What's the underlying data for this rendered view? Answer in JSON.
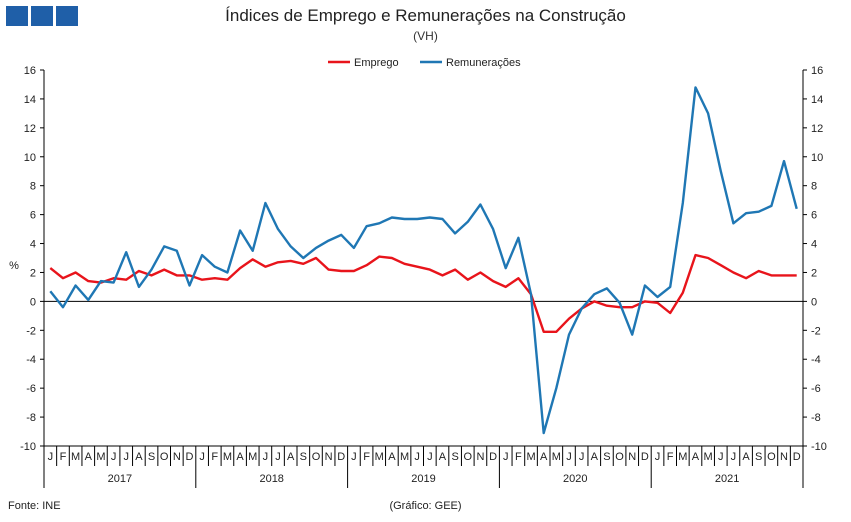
{
  "header": {
    "title": "Índices de Emprego e Remunerações na Construção",
    "subtitle": "(VH)"
  },
  "footer": {
    "source": "Fonte: INE",
    "credit": "(Gráfico: GEE)"
  },
  "colors": {
    "logo": "#1f5fa8",
    "emprego": "#e8141b",
    "remuneracoes": "#1f77b4"
  },
  "chart_data": {
    "type": "line",
    "title": "Índices de Emprego e Remunerações na Construção",
    "subtitle": "(VH)",
    "ylabel": "%",
    "ylim": [
      -10,
      16
    ],
    "yticks": [
      -10,
      -8,
      -6,
      -4,
      -2,
      0,
      2,
      4,
      6,
      8,
      10,
      12,
      14,
      16
    ],
    "grid": false,
    "legend": "top-center",
    "month_labels": [
      "J",
      "F",
      "M",
      "A",
      "M",
      "J",
      "J",
      "A",
      "S",
      "O",
      "N",
      "D"
    ],
    "years": [
      "2017",
      "2018",
      "2019",
      "2020",
      "2021"
    ],
    "series": [
      {
        "name": "Emprego",
        "color": "#e8141b",
        "values": [
          2.3,
          1.6,
          2.0,
          1.4,
          1.3,
          1.6,
          1.5,
          2.1,
          1.8,
          2.2,
          1.8,
          1.8,
          1.5,
          1.6,
          1.5,
          2.3,
          2.9,
          2.4,
          2.7,
          2.8,
          2.6,
          3.0,
          2.2,
          2.1,
          2.1,
          2.5,
          3.1,
          3.0,
          2.6,
          2.4,
          2.2,
          1.8,
          2.2,
          1.5,
          2.0,
          1.4,
          1.0,
          1.6,
          0.5,
          -2.1,
          -2.1,
          -1.2,
          -0.5,
          0.0,
          -0.3,
          -0.4,
          -0.4,
          0.0,
          -0.1,
          -0.8,
          0.6,
          3.2,
          3.0,
          2.5,
          2.0,
          1.6,
          2.1,
          1.8,
          1.8,
          1.8
        ]
      },
      {
        "name": "Remunerações",
        "color": "#1f77b4",
        "values": [
          0.7,
          -0.4,
          1.1,
          0.1,
          1.4,
          1.3,
          3.4,
          1.0,
          2.2,
          3.8,
          3.5,
          1.1,
          3.2,
          2.4,
          2.0,
          4.9,
          3.5,
          6.8,
          5.0,
          3.8,
          3.0,
          3.7,
          4.2,
          4.6,
          3.7,
          5.2,
          5.4,
          5.8,
          5.7,
          5.7,
          5.8,
          5.7,
          4.7,
          5.5,
          6.7,
          5.0,
          2.3,
          4.4,
          0.5,
          -9.1,
          -6.0,
          -2.3,
          -0.5,
          0.5,
          0.9,
          -0.1,
          -2.3,
          1.1,
          0.3,
          1.0,
          6.8,
          14.8,
          13.0,
          9.0,
          5.4,
          6.1,
          6.2,
          6.6,
          9.7,
          6.4
        ]
      }
    ]
  }
}
